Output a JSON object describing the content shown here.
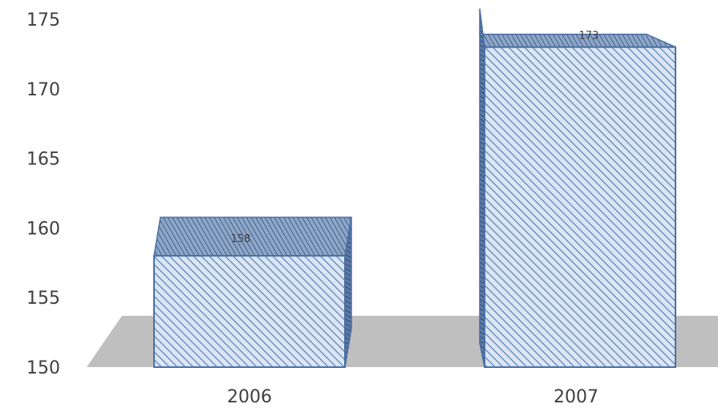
{
  "chart_data": {
    "type": "bar",
    "categories": [
      "2006",
      "2007"
    ],
    "values": [
      158,
      173
    ],
    "title": "",
    "xlabel": "",
    "ylabel": "",
    "ylim": [
      150,
      175
    ],
    "yticks": [
      "150",
      "155",
      "160",
      "165",
      "170",
      "175"
    ],
    "data_labels": [
      "158",
      "173"
    ],
    "grid": false,
    "legend": "none",
    "style": "3d-column-hatched"
  },
  "colors": {
    "bar_fill": "#dbe6f5",
    "bar_hatch": "#4f74ad",
    "bar_edge": "#4a6fa5",
    "floor": "#bfbfbf",
    "text": "#404040"
  }
}
